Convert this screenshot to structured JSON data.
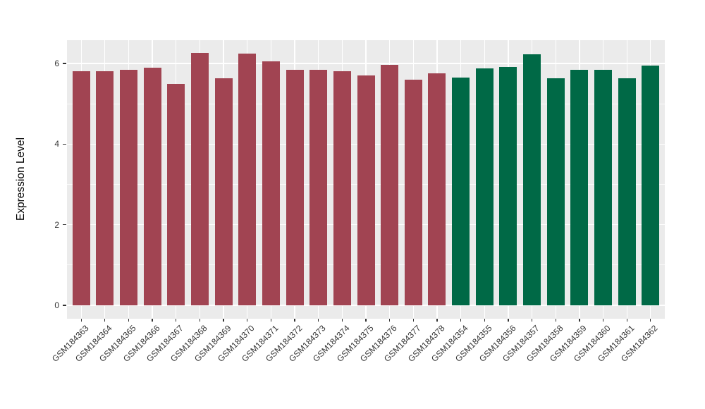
{
  "chart_data": {
    "type": "bar",
    "title": "",
    "xlabel": "",
    "ylabel": "Expression Level",
    "ylim": [
      0,
      6.6
    ],
    "yticks": [
      0,
      2,
      4,
      6
    ],
    "yminor_ticks": [
      1,
      3,
      5
    ],
    "grid": "on",
    "legend_position": "none",
    "categories": [
      "GSM184363",
      "GSM184364",
      "GSM184365",
      "GSM184366",
      "GSM184367",
      "GSM184368",
      "GSM184369",
      "GSM184370",
      "GSM184371",
      "GSM184372",
      "GSM184373",
      "GSM184374",
      "GSM184375",
      "GSM184376",
      "GSM184377",
      "GSM184378",
      "GSM184354",
      "GSM184355",
      "GSM184356",
      "GSM184357",
      "GSM184358",
      "GSM184359",
      "GSM184360",
      "GSM184361",
      "GSM184362"
    ],
    "values": [
      5.81,
      5.81,
      5.84,
      5.9,
      5.5,
      6.26,
      5.64,
      6.24,
      6.05,
      5.84,
      5.85,
      5.81,
      5.7,
      5.96,
      5.6,
      5.75,
      5.65,
      5.88,
      5.92,
      6.22,
      5.63,
      5.85,
      5.84,
      5.64,
      5.94
    ],
    "bar_group_index": [
      0,
      0,
      0,
      0,
      0,
      0,
      0,
      0,
      0,
      0,
      0,
      0,
      0,
      0,
      0,
      0,
      1,
      1,
      1,
      1,
      1,
      1,
      1,
      1,
      1
    ],
    "groups": [
      {
        "name": "group-1",
        "color": "#A14452"
      },
      {
        "name": "group-2",
        "color": "#006946"
      }
    ]
  },
  "style": {
    "panel_background": "#EBEBEB",
    "grid_color": "#FFFFFF",
    "axis_text_color": "#333333",
    "axis_title_color": "#000000",
    "page_background": "#FFFFFF"
  }
}
